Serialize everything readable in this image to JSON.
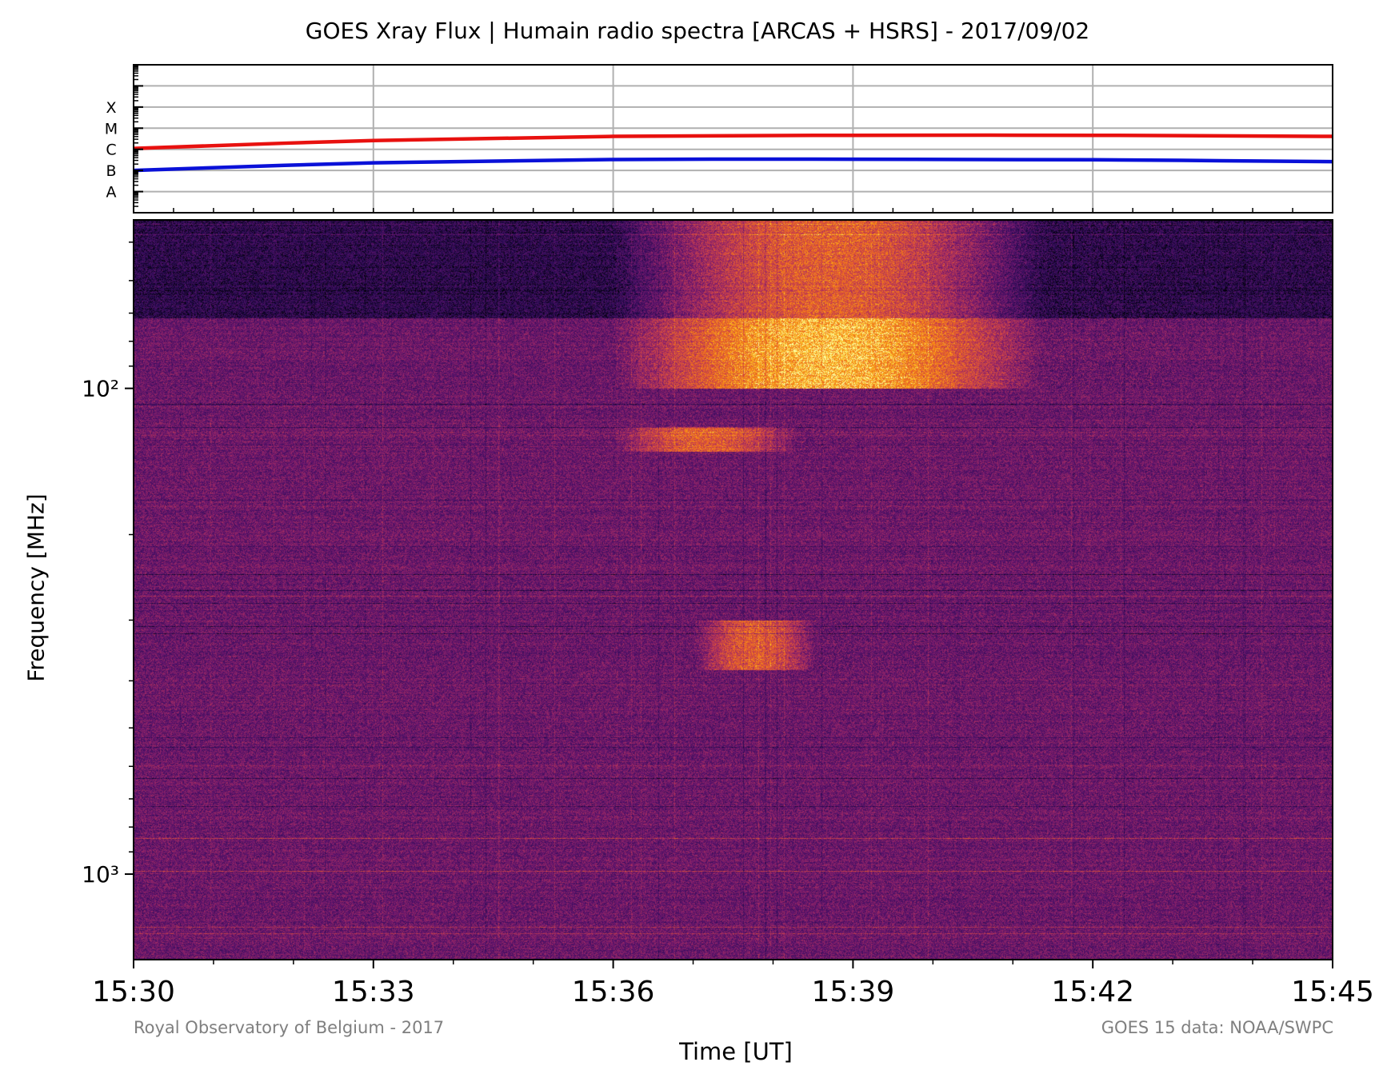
{
  "title": "GOES Xray Flux | Humain radio spectra [ARCAS + HSRS] - 2017/09/02",
  "credits": {
    "left": "Royal Observatory of Belgium - 2017",
    "right": "GOES 15 data: NOAA/SWPC"
  },
  "chart_data": [
    {
      "type": "line",
      "panel": "goes-xray-flux",
      "x": [
        "15:30",
        "15:33",
        "15:36",
        "15:39",
        "15:42",
        "15:45"
      ],
      "yscale": "log",
      "ylim": [
        1e-09,
        0.01
      ],
      "yticklabels": [
        "A",
        "B",
        "C",
        "M",
        "X"
      ],
      "ytickvalues": [
        1e-08,
        1e-07,
        1e-06,
        1e-05,
        0.0001
      ],
      "grid": true,
      "series": [
        {
          "color": "#e8110f",
          "values": [
            1.1e-06,
            2.6e-06,
            4.1e-06,
            4.6e-06,
            4.6e-06,
            4.1e-06
          ]
        },
        {
          "color": "#0a11d8",
          "values": [
            1e-07,
            2.3e-07,
            3.3e-07,
            3.4e-07,
            3.2e-07,
            2.6e-07
          ]
        }
      ]
    },
    {
      "type": "heatmap",
      "panel": "radio-spectrogram",
      "colormap": "inferno",
      "xlabel": "Time [UT]",
      "ylabel": "Frequency [MHz]",
      "x_ticklabels": [
        "15:30",
        "15:33",
        "15:36",
        "15:39",
        "15:42",
        "15:45"
      ],
      "xlim": [
        "15:30",
        "15:45"
      ],
      "yscale": "log",
      "ylim": [
        1500,
        45
      ],
      "y_ticklabels": [
        "10²",
        "10³"
      ],
      "y_tickvalues": [
        100,
        1000
      ],
      "features": [
        {
          "start": "15:36",
          "end": "15:43",
          "freq_range": [
            45,
            100
          ],
          "intensity": "high"
        },
        {
          "start": "15:36",
          "end": "15:39",
          "freq_range": [
            120,
            135
          ],
          "intensity": "medium"
        },
        {
          "start": "15:37",
          "end": "15:39",
          "freq_range": [
            300,
            380
          ],
          "intensity": "medium"
        }
      ]
    }
  ]
}
